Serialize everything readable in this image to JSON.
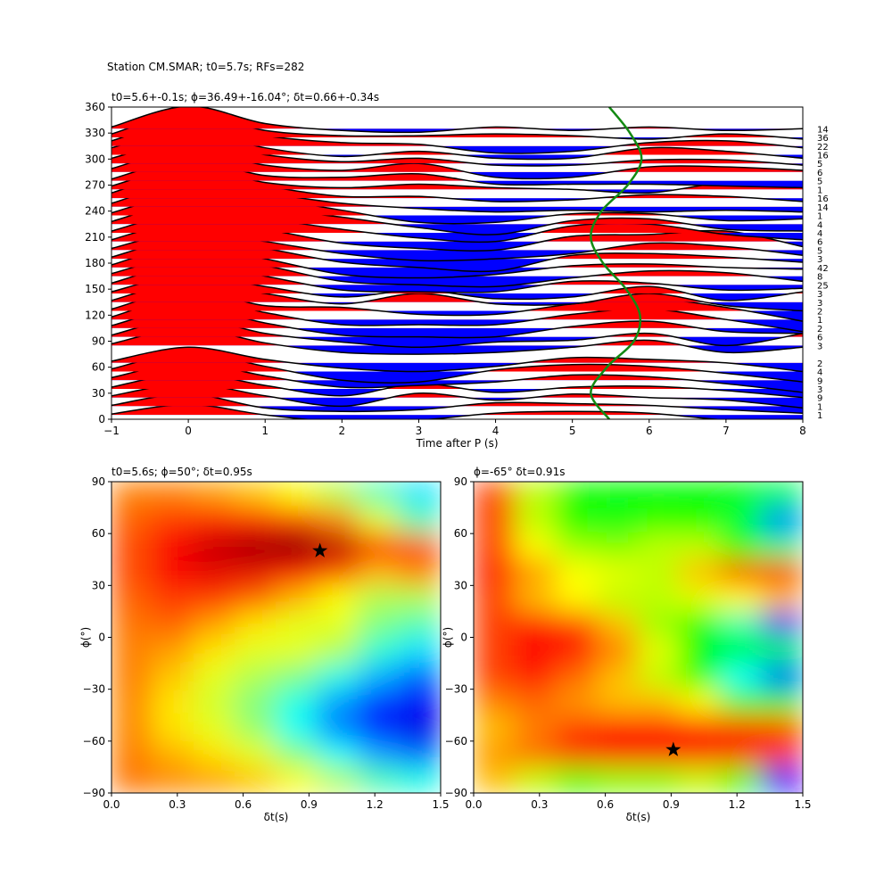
{
  "suptitle": "Station CM.SMAR; t0=5.7s; RFs=282",
  "chart_data": [
    {
      "type": "wiggle",
      "title": "t0=5.6+-0.1s; ϕ=36.49+-16.04°; δt=0.66+-0.34s",
      "xlabel": "Time after P (s)",
      "xlim": [
        -1,
        8
      ],
      "ylim": [
        0,
        360
      ],
      "xticks": [
        {
          "value": -1,
          "label": "−1"
        },
        0,
        1,
        2,
        3,
        4,
        5,
        6,
        7,
        8
      ],
      "yticks": [
        0,
        30,
        60,
        90,
        120,
        150,
        180,
        210,
        240,
        270,
        300,
        330,
        360
      ],
      "positive_color": "#ff0000",
      "negative_color": "#0000ff",
      "line_color": "#000000",
      "x": [
        -1,
        0,
        1,
        2,
        3,
        4,
        5,
        6,
        7,
        8
      ],
      "traces": [
        {
          "baz": 5,
          "count": 1,
          "values": [
            1,
            12,
            0,
            -8,
            -6,
            2,
            4,
            2,
            -6,
            -10
          ]
        },
        {
          "baz": 15,
          "count": 1,
          "values": [
            1,
            14,
            -2,
            -6,
            -4,
            4,
            3,
            1,
            -4,
            -8
          ]
        },
        {
          "baz": 25,
          "count": 9,
          "values": [
            2,
            16,
            2,
            -10,
            5,
            -3,
            4,
            0,
            -3,
            -12
          ]
        },
        {
          "baz": 35,
          "count": 3,
          "values": [
            2,
            18,
            4,
            -8,
            6,
            -4,
            2,
            3,
            -2,
            -10
          ]
        },
        {
          "baz": 45,
          "count": 9,
          "values": [
            3,
            20,
            5,
            -8,
            -6,
            -2,
            6,
            4,
            -4,
            -14
          ]
        },
        {
          "baz": 55,
          "count": 4,
          "values": [
            3,
            22,
            6,
            -10,
            -12,
            2,
            8,
            6,
            -2,
            -12
          ]
        },
        {
          "baz": 65,
          "count": 2,
          "values": [
            2,
            18,
            4,
            -6,
            -10,
            -4,
            6,
            4,
            0,
            -10
          ]
        },
        {
          "baz": 85,
          "count": 3,
          "values": [
            2,
            20,
            3,
            -8,
            -10,
            -8,
            -2,
            6,
            -8,
            -2
          ]
        },
        {
          "baz": 95,
          "count": 6,
          "values": [
            2,
            22,
            4,
            -6,
            -12,
            -6,
            -4,
            4,
            -10,
            4
          ]
        },
        {
          "baz": 105,
          "count": 2,
          "values": [
            3,
            24,
            6,
            -8,
            -10,
            -10,
            2,
            8,
            -4,
            -6
          ]
        },
        {
          "baz": 115,
          "count": 1,
          "values": [
            3,
            26,
            8,
            -6,
            -6,
            -6,
            6,
            12,
            0,
            -14
          ]
        },
        {
          "baz": 125,
          "count": 2,
          "values": [
            2,
            24,
            6,
            4,
            -4,
            -4,
            8,
            14,
            4,
            -12
          ]
        },
        {
          "baz": 135,
          "count": 3,
          "values": [
            2,
            24,
            10,
            -2,
            10,
            -2,
            -2,
            10,
            -4,
            -10
          ]
        },
        {
          "baz": 145,
          "count": 3,
          "values": [
            2,
            22,
            8,
            -4,
            4,
            -6,
            -4,
            8,
            -8,
            2
          ]
        },
        {
          "baz": 155,
          "count": 25,
          "values": [
            2,
            24,
            10,
            -6,
            -8,
            -8,
            4,
            2,
            -6,
            -4
          ]
        },
        {
          "baz": 165,
          "count": 8,
          "values": [
            3,
            24,
            12,
            -6,
            -10,
            -12,
            -2,
            6,
            4,
            -6
          ]
        },
        {
          "baz": 175,
          "count": 42,
          "values": [
            3,
            26,
            10,
            -8,
            -12,
            -8,
            2,
            4,
            0,
            -2
          ]
        },
        {
          "baz": 185,
          "count": 3,
          "values": [
            2,
            24,
            12,
            -4,
            -10,
            -14,
            4,
            6,
            2,
            -4
          ]
        },
        {
          "baz": 195,
          "count": 5,
          "values": [
            2,
            22,
            10,
            -4,
            -12,
            -10,
            -4,
            8,
            4,
            -6
          ]
        },
        {
          "baz": 205,
          "count": 6,
          "values": [
            2,
            24,
            14,
            -2,
            -8,
            -10,
            6,
            8,
            12,
            -6
          ]
        },
        {
          "baz": 215,
          "count": 4,
          "values": [
            2,
            24,
            16,
            4,
            -6,
            -10,
            8,
            10,
            -2,
            -8
          ]
        },
        {
          "baz": 225,
          "count": 4,
          "values": [
            3,
            26,
            18,
            8,
            -4,
            -12,
            4,
            6,
            -6,
            -8
          ]
        },
        {
          "baz": 235,
          "count": 1,
          "values": [
            3,
            26,
            20,
            6,
            -8,
            -8,
            2,
            2,
            -6,
            -4
          ]
        },
        {
          "baz": 245,
          "count": 14,
          "values": [
            4,
            28,
            16,
            4,
            -2,
            -6,
            -4,
            -6,
            -4,
            -6
          ]
        },
        {
          "baz": 255,
          "count": 16,
          "values": [
            6,
            30,
            14,
            2,
            2,
            -4,
            -2,
            4,
            2,
            -4
          ]
        },
        {
          "baz": 265,
          "count": 1,
          "values": [
            4,
            26,
            8,
            2,
            6,
            2,
            0,
            -4,
            8,
            6
          ]
        },
        {
          "baz": 275,
          "count": 5,
          "values": [
            2,
            24,
            6,
            4,
            8,
            -4,
            -4,
            -4,
            -6,
            -8
          ]
        },
        {
          "baz": 285,
          "count": 6,
          "values": [
            4,
            26,
            8,
            2,
            10,
            -6,
            -6,
            6,
            6,
            2
          ]
        },
        {
          "baz": 295,
          "count": 5,
          "values": [
            6,
            26,
            10,
            2,
            6,
            -2,
            -2,
            4,
            4,
            -2
          ]
        },
        {
          "baz": 305,
          "count": 16,
          "values": [
            8,
            28,
            8,
            -2,
            4,
            -4,
            -4,
            8,
            4,
            -4
          ]
        },
        {
          "baz": 315,
          "count": 22,
          "values": [
            6,
            30,
            12,
            4,
            2,
            -8,
            -6,
            4,
            6,
            -2
          ]
        },
        {
          "baz": 325,
          "count": 36,
          "values": [
            4,
            28,
            8,
            2,
            2,
            4,
            2,
            -2,
            4,
            -2
          ]
        },
        {
          "baz": 335,
          "count": 14,
          "values": [
            2,
            26,
            6,
            -2,
            -4,
            2,
            -2,
            2,
            -2,
            0
          ]
        }
      ],
      "moveout": {
        "color": "#138a13",
        "x": [
          5.48,
          5.24,
          5.45,
          5.8,
          5.88,
          5.7,
          5.4,
          5.24,
          5.38,
          5.72,
          5.9,
          5.75,
          5.48
        ],
        "baz": [
          0,
          30,
          60,
          90,
          120,
          150,
          180,
          210,
          240,
          270,
          300,
          330,
          360
        ]
      }
    },
    {
      "type": "heatmap",
      "title": "t0=5.6s; ϕ=50°; δt=0.95s",
      "xlabel": "δt(s)",
      "ylabel": "ϕ(°)",
      "xlim": [
        0,
        1.5
      ],
      "ylim": [
        -90,
        90
      ],
      "xticks": [
        {
          "value": 0,
          "label": "0.0"
        },
        0.3,
        0.6,
        0.9,
        1.2,
        1.5
      ],
      "yticks": [
        {
          "value": -90,
          "label": "−90"
        },
        {
          "value": -60,
          "label": "−60"
        },
        {
          "value": -30,
          "label": "−30"
        },
        0,
        30,
        60,
        90
      ],
      "colormap": "jet",
      "z": [
        [
          0.75,
          0.75,
          0.72,
          0.68,
          0.62,
          0.55,
          0.45,
          0.35
        ],
        [
          0.78,
          0.82,
          0.85,
          0.85,
          0.82,
          0.75,
          0.6,
          0.45
        ],
        [
          0.8,
          0.88,
          0.93,
          0.97,
          1.0,
          0.95,
          0.85,
          0.8
        ],
        [
          0.8,
          0.88,
          0.9,
          0.9,
          0.88,
          0.8,
          0.7,
          0.75
        ],
        [
          0.78,
          0.82,
          0.82,
          0.78,
          0.7,
          0.62,
          0.55,
          0.55
        ],
        [
          0.76,
          0.78,
          0.72,
          0.65,
          0.6,
          0.6,
          0.5,
          0.45
        ],
        [
          0.75,
          0.72,
          0.65,
          0.6,
          0.6,
          0.55,
          0.42,
          0.35
        ],
        [
          0.75,
          0.68,
          0.6,
          0.55,
          0.5,
          0.4,
          0.3,
          0.22
        ],
        [
          0.74,
          0.65,
          0.58,
          0.5,
          0.4,
          0.28,
          0.18,
          0.12
        ],
        [
          0.74,
          0.65,
          0.6,
          0.52,
          0.38,
          0.25,
          0.15,
          0.1
        ],
        [
          0.75,
          0.7,
          0.65,
          0.6,
          0.5,
          0.38,
          0.28,
          0.22
        ],
        [
          0.76,
          0.74,
          0.72,
          0.68,
          0.62,
          0.55,
          0.45,
          0.4
        ]
      ],
      "marker": {
        "x": 0.95,
        "y": 50
      }
    },
    {
      "type": "heatmap",
      "title": "ϕ=-65° δt=0.91s",
      "xlabel": "δt(s)",
      "ylabel": "ϕ(°)",
      "xlim": [
        0,
        1.5
      ],
      "ylim": [
        -90,
        90
      ],
      "xticks": [
        {
          "value": 0,
          "label": "0.0"
        },
        0.3,
        0.6,
        0.9,
        1.2,
        1.5
      ],
      "yticks": [
        {
          "value": -90,
          "label": "−90"
        },
        {
          "value": -60,
          "label": "−60"
        },
        {
          "value": -30,
          "label": "−30"
        },
        0,
        30,
        60,
        90
      ],
      "colormap": "hsv",
      "z": [
        [
          0.95,
          0.75,
          0.62,
          0.6,
          0.6,
          0.6,
          0.6,
          0.55
        ],
        [
          0.95,
          0.75,
          0.6,
          0.58,
          0.62,
          0.6,
          0.55,
          0.3
        ],
        [
          0.95,
          0.8,
          0.72,
          0.7,
          0.75,
          0.75,
          0.6,
          0.5
        ],
        [
          0.97,
          0.88,
          0.8,
          0.78,
          0.75,
          0.85,
          0.95,
          0.98
        ],
        [
          0.95,
          0.85,
          0.8,
          0.75,
          0.75,
          0.78,
          0.8,
          0.85
        ],
        [
          0.95,
          0.98,
          0.95,
          0.85,
          0.72,
          0.6,
          0.45,
          0.15
        ],
        [
          0.95,
          1.0,
          0.98,
          0.9,
          0.78,
          0.6,
          0.6,
          0.55
        ],
        [
          0.95,
          0.98,
          0.92,
          0.85,
          0.75,
          0.6,
          0.4,
          0.25
        ],
        [
          0.9,
          0.92,
          0.88,
          0.85,
          0.85,
          0.8,
          0.65,
          0.6
        ],
        [
          0.85,
          0.9,
          0.95,
          0.98,
          0.98,
          0.98,
          0.97,
          0.95
        ],
        [
          0.88,
          0.92,
          0.97,
          1.0,
          1.0,
          0.98,
          0.97,
          0.95
        ],
        [
          0.85,
          0.75,
          0.65,
          0.7,
          0.7,
          0.75,
          0.65,
          0.2
        ]
      ],
      "marker": {
        "x": 0.91,
        "y": -65
      }
    }
  ]
}
